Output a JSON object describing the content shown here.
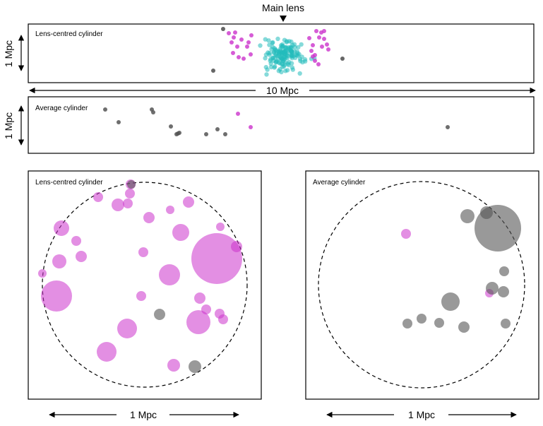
{
  "chart_data": [
    {
      "type": "scatter",
      "panel": "top-projection",
      "label": "Lens-centred cylinder",
      "scale_vertical": "1 Mpc",
      "scale_horizontal": "10 Mpc",
      "marker_label": "Main lens",
      "colors": {
        "gray": "#555555",
        "magenta": "#cc33cc",
        "cyan": "#22bbbb"
      },
      "points_gray": [
        [
          316,
          41
        ],
        [
          302,
          100
        ],
        [
          485,
          83
        ]
      ],
      "points_magenta": [
        [
          324,
          47
        ],
        [
          333,
          46
        ],
        [
          331,
          53
        ],
        [
          328,
          60
        ],
        [
          342,
          56
        ],
        [
          352,
          60
        ],
        [
          330,
          75
        ],
        [
          338,
          81
        ],
        [
          345,
          83
        ],
        [
          355,
          77
        ],
        [
          350,
          66
        ],
        [
          356,
          50
        ],
        [
          336,
          66
        ],
        [
          448,
          44
        ],
        [
          455,
          46
        ],
        [
          459,
          44
        ],
        [
          452,
          53
        ],
        [
          459,
          55
        ],
        [
          463,
          63
        ],
        [
          465,
          70
        ],
        [
          456,
          66
        ],
        [
          443,
          64
        ],
        [
          446,
          78
        ],
        [
          446,
          86
        ],
        [
          451,
          91
        ],
        [
          443,
          80
        ],
        [
          438,
          54
        ],
        [
          441,
          72
        ]
      ],
      "cyan_cloud": {
        "count": 150,
        "x_range": [
          358,
          448
        ],
        "y_range": [
          50,
          106
        ],
        "alpha": 0.55
      }
    },
    {
      "type": "scatter",
      "panel": "middle-projection",
      "label": "Average cylinder",
      "scale_vertical": "1 Mpc",
      "points_gray": [
        [
          149,
          155
        ],
        [
          215,
          155
        ],
        [
          217,
          159
        ],
        [
          168,
          173
        ],
        [
          242,
          179
        ],
        [
          252,
          189
        ],
        [
          250,
          190
        ],
        [
          254,
          188
        ],
        [
          292,
          190
        ],
        [
          308,
          183
        ],
        [
          319,
          190
        ],
        [
          634,
          180
        ]
      ],
      "points_magenta": [
        [
          337,
          161
        ],
        [
          355,
          180
        ]
      ]
    },
    {
      "type": "scatter",
      "panel": "bottom-left",
      "label": "Lens-centred cylinder",
      "scale_horizontal": "1 Mpc",
      "circle": {
        "cx": 205,
        "cy": 403,
        "r": 145
      },
      "bubbles_magenta": [
        [
          185,
          261,
          7
        ],
        [
          184,
          274,
          7
        ],
        [
          139,
          279,
          7
        ],
        [
          167,
          290,
          9
        ],
        [
          181,
          288,
          7
        ],
        [
          241,
          297,
          6
        ],
        [
          267,
          286,
          8
        ],
        [
          211,
          308,
          8
        ],
        [
          87,
          323,
          11
        ],
        [
          312,
          321,
          6
        ],
        [
          256,
          329,
          12
        ],
        [
          108,
          341,
          7
        ],
        [
          115,
          363,
          8
        ],
        [
          203,
          357,
          7
        ],
        [
          307,
          366,
          36
        ],
        [
          84,
          370,
          10
        ],
        [
          335,
          349,
          8
        ],
        [
          60,
          387,
          6
        ],
        [
          240,
          389,
          15
        ],
        [
          80,
          419,
          22
        ],
        [
          200,
          419,
          7
        ],
        [
          283,
          422,
          8
        ],
        [
          292,
          438,
          7
        ],
        [
          281,
          456,
          17
        ],
        [
          311,
          444,
          7
        ],
        [
          316,
          452,
          7
        ],
        [
          180,
          465,
          14
        ],
        [
          151,
          498,
          14
        ],
        [
          246,
          517,
          9
        ]
      ],
      "bubbles_gray": [
        [
          186,
          261,
          6
        ],
        [
          226,
          445,
          8
        ],
        [
          276,
          519,
          9
        ]
      ]
    },
    {
      "type": "scatter",
      "panel": "bottom-right",
      "label": "Average cylinder",
      "scale_horizontal": "1 Mpc",
      "circle": {
        "cx": 597,
        "cy": 403,
        "r": 146
      },
      "bubbles_magenta": [
        [
          575,
          331,
          7
        ],
        [
          693,
          415,
          6
        ]
      ],
      "bubbles_gray": [
        [
          662,
          306,
          10
        ],
        [
          689,
          301,
          9
        ],
        [
          705,
          323,
          33
        ],
        [
          714,
          384,
          7
        ],
        [
          697,
          408,
          9
        ],
        [
          713,
          413,
          8
        ],
        [
          638,
          427,
          13
        ],
        [
          597,
          451,
          7
        ],
        [
          577,
          458,
          7
        ],
        [
          622,
          457,
          7
        ],
        [
          657,
          463,
          8
        ],
        [
          716,
          458,
          7
        ]
      ]
    }
  ]
}
